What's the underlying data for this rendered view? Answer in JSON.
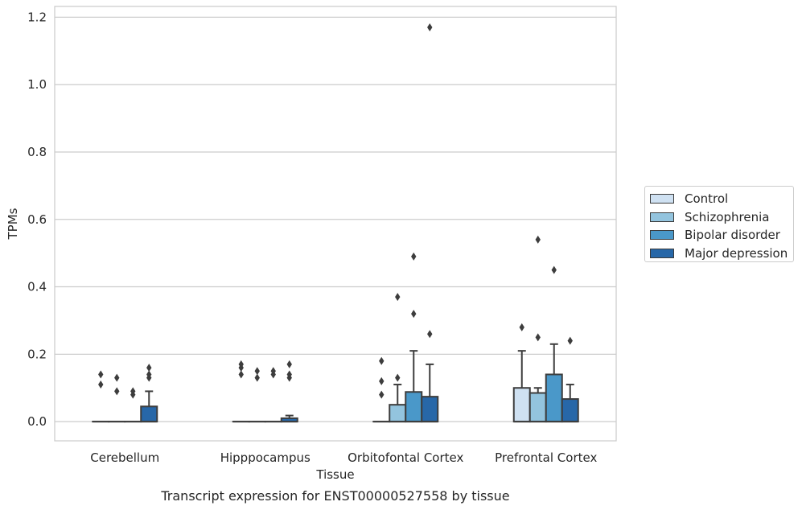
{
  "chart_data": {
    "type": "boxplot",
    "title": "Transcript expression for ENST00000527558 by tissue",
    "xlabel": "Tissue",
    "ylabel": "TPMs",
    "ylim": [
      -0.057,
      1.232
    ],
    "yticks": [
      "0.0",
      "0.2",
      "0.4",
      "0.6",
      "0.8",
      "1.0",
      "1.2"
    ],
    "ytick_values": [
      0.0,
      0.2,
      0.4,
      0.6,
      0.8,
      1.0,
      1.2
    ],
    "grid": "horizontal",
    "legend_position": "right",
    "categories": [
      "Cerebellum",
      "Hipppocampus",
      "Orbitofontal Cortex",
      "Prefrontal Cortex"
    ],
    "series": [
      {
        "name": "Control",
        "color": "#cfe1f2",
        "boxes": [
          {
            "q1": 0,
            "median": 0,
            "q3": 0,
            "whisker_low": 0,
            "whisker_high": 0,
            "outliers": [
              0.11,
              0.14
            ]
          },
          {
            "q1": 0,
            "median": 0,
            "q3": 0,
            "whisker_low": 0,
            "whisker_high": 0,
            "outliers": [
              0.14,
              0.16,
              0.17
            ]
          },
          {
            "q1": 0,
            "median": 0,
            "q3": 0,
            "whisker_low": 0,
            "whisker_high": 0,
            "outliers": [
              0.08,
              0.12,
              0.18
            ]
          },
          {
            "q1": 0,
            "median": 0,
            "q3": 0.1,
            "whisker_low": 0,
            "whisker_high": 0.21,
            "outliers": [
              0.28
            ]
          }
        ]
      },
      {
        "name": "Schizophrenia",
        "color": "#93c4de",
        "boxes": [
          {
            "q1": 0,
            "median": 0,
            "q3": 0,
            "whisker_low": 0,
            "whisker_high": 0,
            "outliers": [
              0.09,
              0.13
            ]
          },
          {
            "q1": 0,
            "median": 0,
            "q3": 0,
            "whisker_low": 0,
            "whisker_high": 0,
            "outliers": [
              0.13,
              0.15
            ]
          },
          {
            "q1": 0,
            "median": 0,
            "q3": 0.05,
            "whisker_low": 0,
            "whisker_high": 0.11,
            "outliers": [
              0.13,
              0.37
            ]
          },
          {
            "q1": 0,
            "median": 0,
            "q3": 0.085,
            "whisker_low": 0,
            "whisker_high": 0.1,
            "outliers": [
              0.25,
              0.54
            ]
          }
        ]
      },
      {
        "name": "Bipolar disorder",
        "color": "#4a98c9",
        "boxes": [
          {
            "q1": 0,
            "median": 0,
            "q3": 0,
            "whisker_low": 0,
            "whisker_high": 0,
            "outliers": [
              0.08,
              0.09
            ]
          },
          {
            "q1": 0,
            "median": 0,
            "q3": 0,
            "whisker_low": 0,
            "whisker_high": 0,
            "outliers": [
              0.14,
              0.15
            ]
          },
          {
            "q1": 0,
            "median": 0,
            "q3": 0.088,
            "whisker_low": 0,
            "whisker_high": 0.21,
            "outliers": [
              0.32,
              0.49
            ]
          },
          {
            "q1": 0,
            "median": 0,
            "q3": 0.14,
            "whisker_low": 0,
            "whisker_high": 0.23,
            "outliers": [
              0.45
            ]
          }
        ]
      },
      {
        "name": "Major depression",
        "color": "#2767a8",
        "boxes": [
          {
            "q1": 0,
            "median": 0,
            "q3": 0.045,
            "whisker_low": 0,
            "whisker_high": 0.09,
            "outliers": [
              0.13,
              0.14,
              0.16
            ]
          },
          {
            "q1": 0,
            "median": 0,
            "q3": 0.01,
            "whisker_low": 0,
            "whisker_high": 0.018,
            "outliers": [
              0.13,
              0.14,
              0.17
            ]
          },
          {
            "q1": 0,
            "median": 0,
            "q3": 0.074,
            "whisker_low": 0,
            "whisker_high": 0.17,
            "outliers": [
              0.26,
              1.17
            ]
          },
          {
            "q1": 0,
            "median": 0,
            "q3": 0.067,
            "whisker_low": 0,
            "whisker_high": 0.11,
            "outliers": [
              0.24
            ]
          }
        ]
      }
    ]
  }
}
